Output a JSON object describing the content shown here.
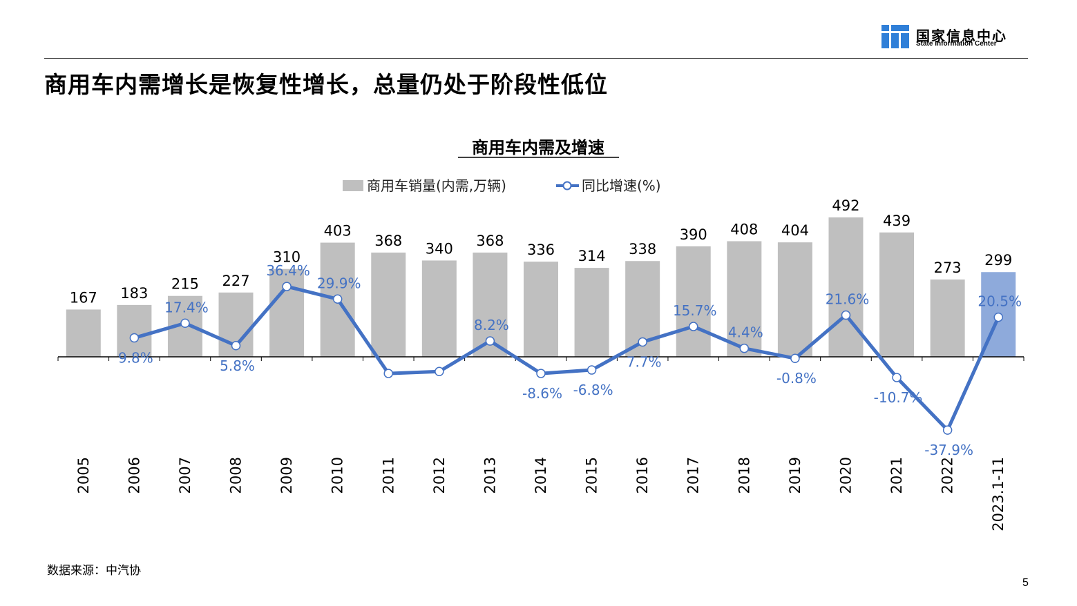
{
  "header": {
    "org_name_cn": "国家信息中心",
    "org_name_en": "State Information Center",
    "logo_color": "#2f7fd8"
  },
  "headline": "商用车内需增长是恢复性增长，总量仍处于阶段性低位",
  "footer": {
    "source": "数据来源：中汽协",
    "page_number": "5"
  },
  "chart_data": {
    "type": "bar",
    "title": "商用车内需及增速",
    "legend_position": "top-center",
    "categories": [
      "2005",
      "2006",
      "2007",
      "2008",
      "2009",
      "2010",
      "2011",
      "2012",
      "2013",
      "2014",
      "2015",
      "2016",
      "2017",
      "2018",
      "2019",
      "2020",
      "2021",
      "2022",
      "2023.1-11"
    ],
    "series": [
      {
        "name": "商用车销量(内需,万辆)",
        "kind": "bar",
        "color": "#bfbfbf",
        "highlight_color": "#8eaadb",
        "highlight_index": 18,
        "values": [
          167,
          183,
          215,
          227,
          310,
          403,
          368,
          340,
          368,
          336,
          314,
          338,
          390,
          408,
          404,
          492,
          439,
          273,
          299
        ],
        "labels": [
          "167",
          "183",
          "215",
          "227",
          "310",
          "403",
          "368",
          "340",
          "368",
          "336",
          "314",
          "338",
          "390",
          "408",
          "404",
          "492",
          "439",
          "273",
          "299"
        ]
      },
      {
        "name": "同比增速(%)",
        "kind": "line",
        "color": "#4472c4",
        "values": [
          null,
          9.8,
          17.4,
          5.8,
          36.4,
          29.9,
          -8.6,
          -7.6,
          8.2,
          -8.6,
          -6.8,
          7.7,
          15.7,
          4.4,
          -0.8,
          21.6,
          -10.7,
          -37.9,
          20.5
        ],
        "labels": [
          "",
          "9.8%",
          "17.4%",
          "5.8%",
          "36.4%",
          "29.9%",
          "",
          "",
          "8.2%",
          "-8.6%",
          "-6.8%",
          "7.7%",
          "15.7%",
          "4.4%",
          "-0.8%",
          "21.6%",
          "-10.7%",
          "-37.9%",
          "20.5%"
        ]
      }
    ],
    "grid": false
  }
}
